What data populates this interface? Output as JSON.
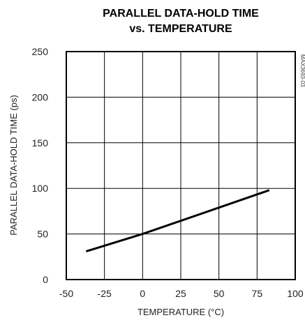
{
  "chart_data": {
    "type": "line",
    "title": "PARALLEL DATA-HOLD TIME",
    "subtitle": "vs. TEMPERATURE",
    "xlabel": "TEMPERATURE (°C)",
    "ylabel": "PARALLEL DATA-HOLD TIME (ps)",
    "xlim": [
      -50,
      100
    ],
    "ylim": [
      0,
      250
    ],
    "xticks": [
      "-50",
      "-25",
      "0",
      "25",
      "50",
      "75",
      "100"
    ],
    "yticks": [
      "0",
      "50",
      "100",
      "150",
      "200",
      "250"
    ],
    "grid": true,
    "figure_code": "MAX3693-03",
    "series": [
      {
        "x": [
          -37,
          0,
          83
        ],
        "y": [
          31,
          50,
          98
        ]
      }
    ]
  }
}
